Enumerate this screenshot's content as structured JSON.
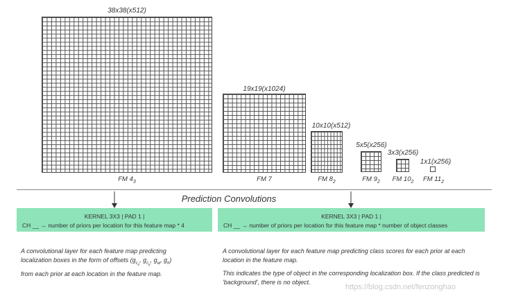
{
  "feature_maps": [
    {
      "top_label": "38x38(x512)",
      "bottom_label": "FM 4",
      "bottom_sub": "3"
    },
    {
      "top_label": "19x19(x1024)",
      "bottom_label": "FM 7",
      "bottom_sub": ""
    },
    {
      "top_label": "10x10(x512)",
      "bottom_label": "FM 8",
      "bottom_sub": "2"
    },
    {
      "top_label": "5x5(x256)",
      "bottom_label": "FM 9",
      "bottom_sub": "2"
    },
    {
      "top_label": "3x3(x256)",
      "bottom_label": "FM 10",
      "bottom_sub": "2"
    },
    {
      "top_label": "1x1(x256)",
      "bottom_label": "FM 11",
      "bottom_sub": "2"
    }
  ],
  "section_title": "Prediction Convolutions",
  "left_kernel": {
    "line1": "KERNEL 3X3 | PAD 1 |",
    "line2": "CH __ → number of priors per location for this feature map * 4"
  },
  "right_kernel": {
    "line1": "KERNEL 3X3 | PAD 1 |",
    "line2": "CH __ → number of priors per location for this feature map * number of object classes"
  },
  "left_desc": {
    "line1": "A convolutional layer for each feature map predicting",
    "line2_pre": "localization boxes in the form of offsets (",
    "g_cx": "g",
    "g_cy": "g",
    "g_w": "g",
    "g_h": "g",
    "line2_post": ")",
    "line3": "from each prior at each location in the feature map."
  },
  "right_desc": {
    "para1": "A convolutional layer for each feature map predicting class scores for each prior at each location in the feature map.",
    "para2": "This indicates the type of object in the corresponding localization box. If the class predicted is 'background', there is no object."
  },
  "watermark": "https://blog.csdn.net/fenzonghao"
}
